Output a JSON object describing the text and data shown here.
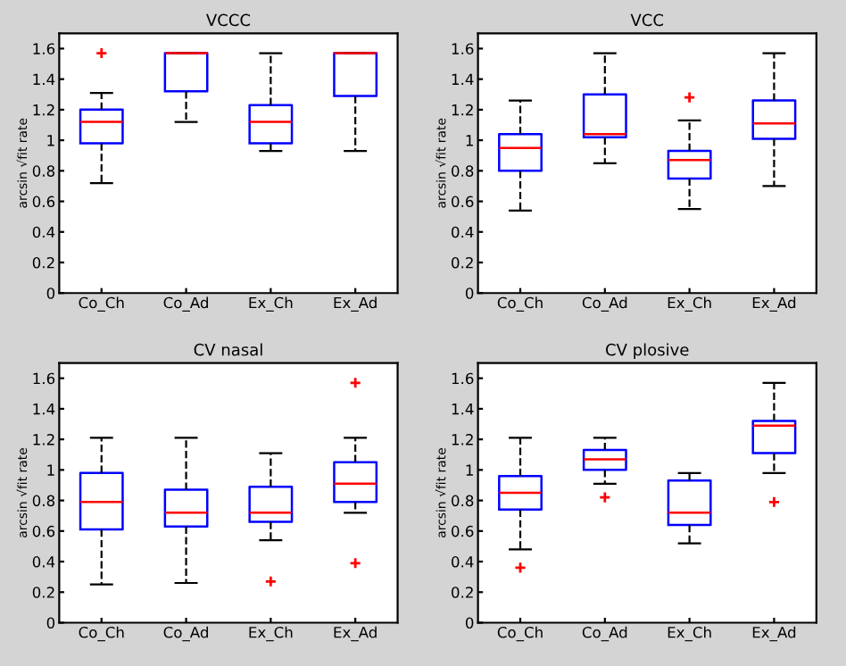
{
  "chart_data": [
    {
      "type": "box",
      "title": "VCCC",
      "ylabel": "arcsin √fit rate",
      "categories": [
        "Co_Ch",
        "Co_Ad",
        "Ex_Ch",
        "Ex_Ad"
      ],
      "ylim": [
        0,
        1.7
      ],
      "yticks": [
        0,
        0.2,
        0.4,
        0.6,
        0.8,
        1,
        1.2,
        1.4,
        1.6
      ],
      "grid": false,
      "series": [
        {
          "color": "#0000ff",
          "boxes": [
            {
              "low": 0.72,
              "q1": 0.98,
              "median": 1.12,
              "q3": 1.2,
              "high": 1.31,
              "outliers": [
                1.57
              ]
            },
            {
              "low": 1.12,
              "q1": 1.32,
              "median": 1.57,
              "q3": 1.57,
              "high": 1.57
            },
            {
              "low": 0.93,
              "q1": 0.98,
              "median": 1.12,
              "q3": 1.23,
              "high": 1.57
            },
            {
              "low": 0.93,
              "q1": 1.29,
              "median": 1.57,
              "q3": 1.57,
              "high": 1.57
            }
          ]
        }
      ]
    },
    {
      "type": "box",
      "title": "VCC",
      "ylabel": "arcsin √fit rate",
      "categories": [
        "Co_Ch",
        "Co_Ad",
        "Ex_Ch",
        "Ex_Ad"
      ],
      "ylim": [
        0,
        1.7
      ],
      "yticks": [
        0,
        0.2,
        0.4,
        0.6,
        0.8,
        1,
        1.2,
        1.4,
        1.6
      ],
      "grid": false,
      "series": [
        {
          "color": "#0000ff",
          "boxes": [
            {
              "low": 0.54,
              "q1": 0.8,
              "median": 0.95,
              "q3": 1.04,
              "high": 1.26
            },
            {
              "low": 0.85,
              "q1": 1.02,
              "median": 1.04,
              "q3": 1.3,
              "high": 1.57
            },
            {
              "low": 0.55,
              "q1": 0.75,
              "median": 0.87,
              "q3": 0.93,
              "high": 1.13,
              "outliers": [
                1.28
              ]
            },
            {
              "low": 0.7,
              "q1": 1.01,
              "median": 1.11,
              "q3": 1.26,
              "high": 1.57
            }
          ]
        }
      ]
    },
    {
      "type": "box",
      "title": "CV nasal",
      "ylabel": "arcsin √fit rate",
      "categories": [
        "Co_Ch",
        "Co_Ad",
        "Ex_Ch",
        "Ex_Ad"
      ],
      "ylim": [
        0,
        1.7
      ],
      "yticks": [
        0,
        0.2,
        0.4,
        0.6,
        0.8,
        1,
        1.2,
        1.4,
        1.6
      ],
      "grid": false,
      "series": [
        {
          "color": "#0000ff",
          "boxes": [
            {
              "low": 0.25,
              "q1": 0.61,
              "median": 0.79,
              "q3": 0.98,
              "high": 1.21
            },
            {
              "low": 0.26,
              "q1": 0.63,
              "median": 0.72,
              "q3": 0.87,
              "high": 1.21
            },
            {
              "low": 0.54,
              "q1": 0.66,
              "median": 0.72,
              "q3": 0.89,
              "high": 1.11,
              "outliers": [
                0.27
              ]
            },
            {
              "low": 0.72,
              "q1": 0.79,
              "median": 0.91,
              "q3": 1.05,
              "high": 1.21,
              "outliers": [
                0.39,
                1.57
              ]
            }
          ]
        }
      ]
    },
    {
      "type": "box",
      "title": "CV plosive",
      "ylabel": "arcsin √fit rate",
      "categories": [
        "Co_Ch",
        "Co_Ad",
        "Ex_Ch",
        "Ex_Ad"
      ],
      "ylim": [
        0,
        1.7
      ],
      "yticks": [
        0,
        0.2,
        0.4,
        0.6,
        0.8,
        1,
        1.2,
        1.4,
        1.6
      ],
      "grid": false,
      "series": [
        {
          "color": "#0000ff",
          "boxes": [
            {
              "low": 0.48,
              "q1": 0.74,
              "median": 0.85,
              "q3": 0.96,
              "high": 1.21,
              "outliers": [
                0.36
              ]
            },
            {
              "low": 0.91,
              "q1": 1.0,
              "median": 1.07,
              "q3": 1.13,
              "high": 1.21,
              "outliers": [
                0.82
              ]
            },
            {
              "low": 0.52,
              "q1": 0.64,
              "median": 0.72,
              "q3": 0.93,
              "high": 0.98
            },
            {
              "low": 0.98,
              "q1": 1.11,
              "median": 1.29,
              "q3": 1.32,
              "high": 1.57,
              "outliers": [
                0.79
              ]
            }
          ]
        }
      ]
    }
  ]
}
